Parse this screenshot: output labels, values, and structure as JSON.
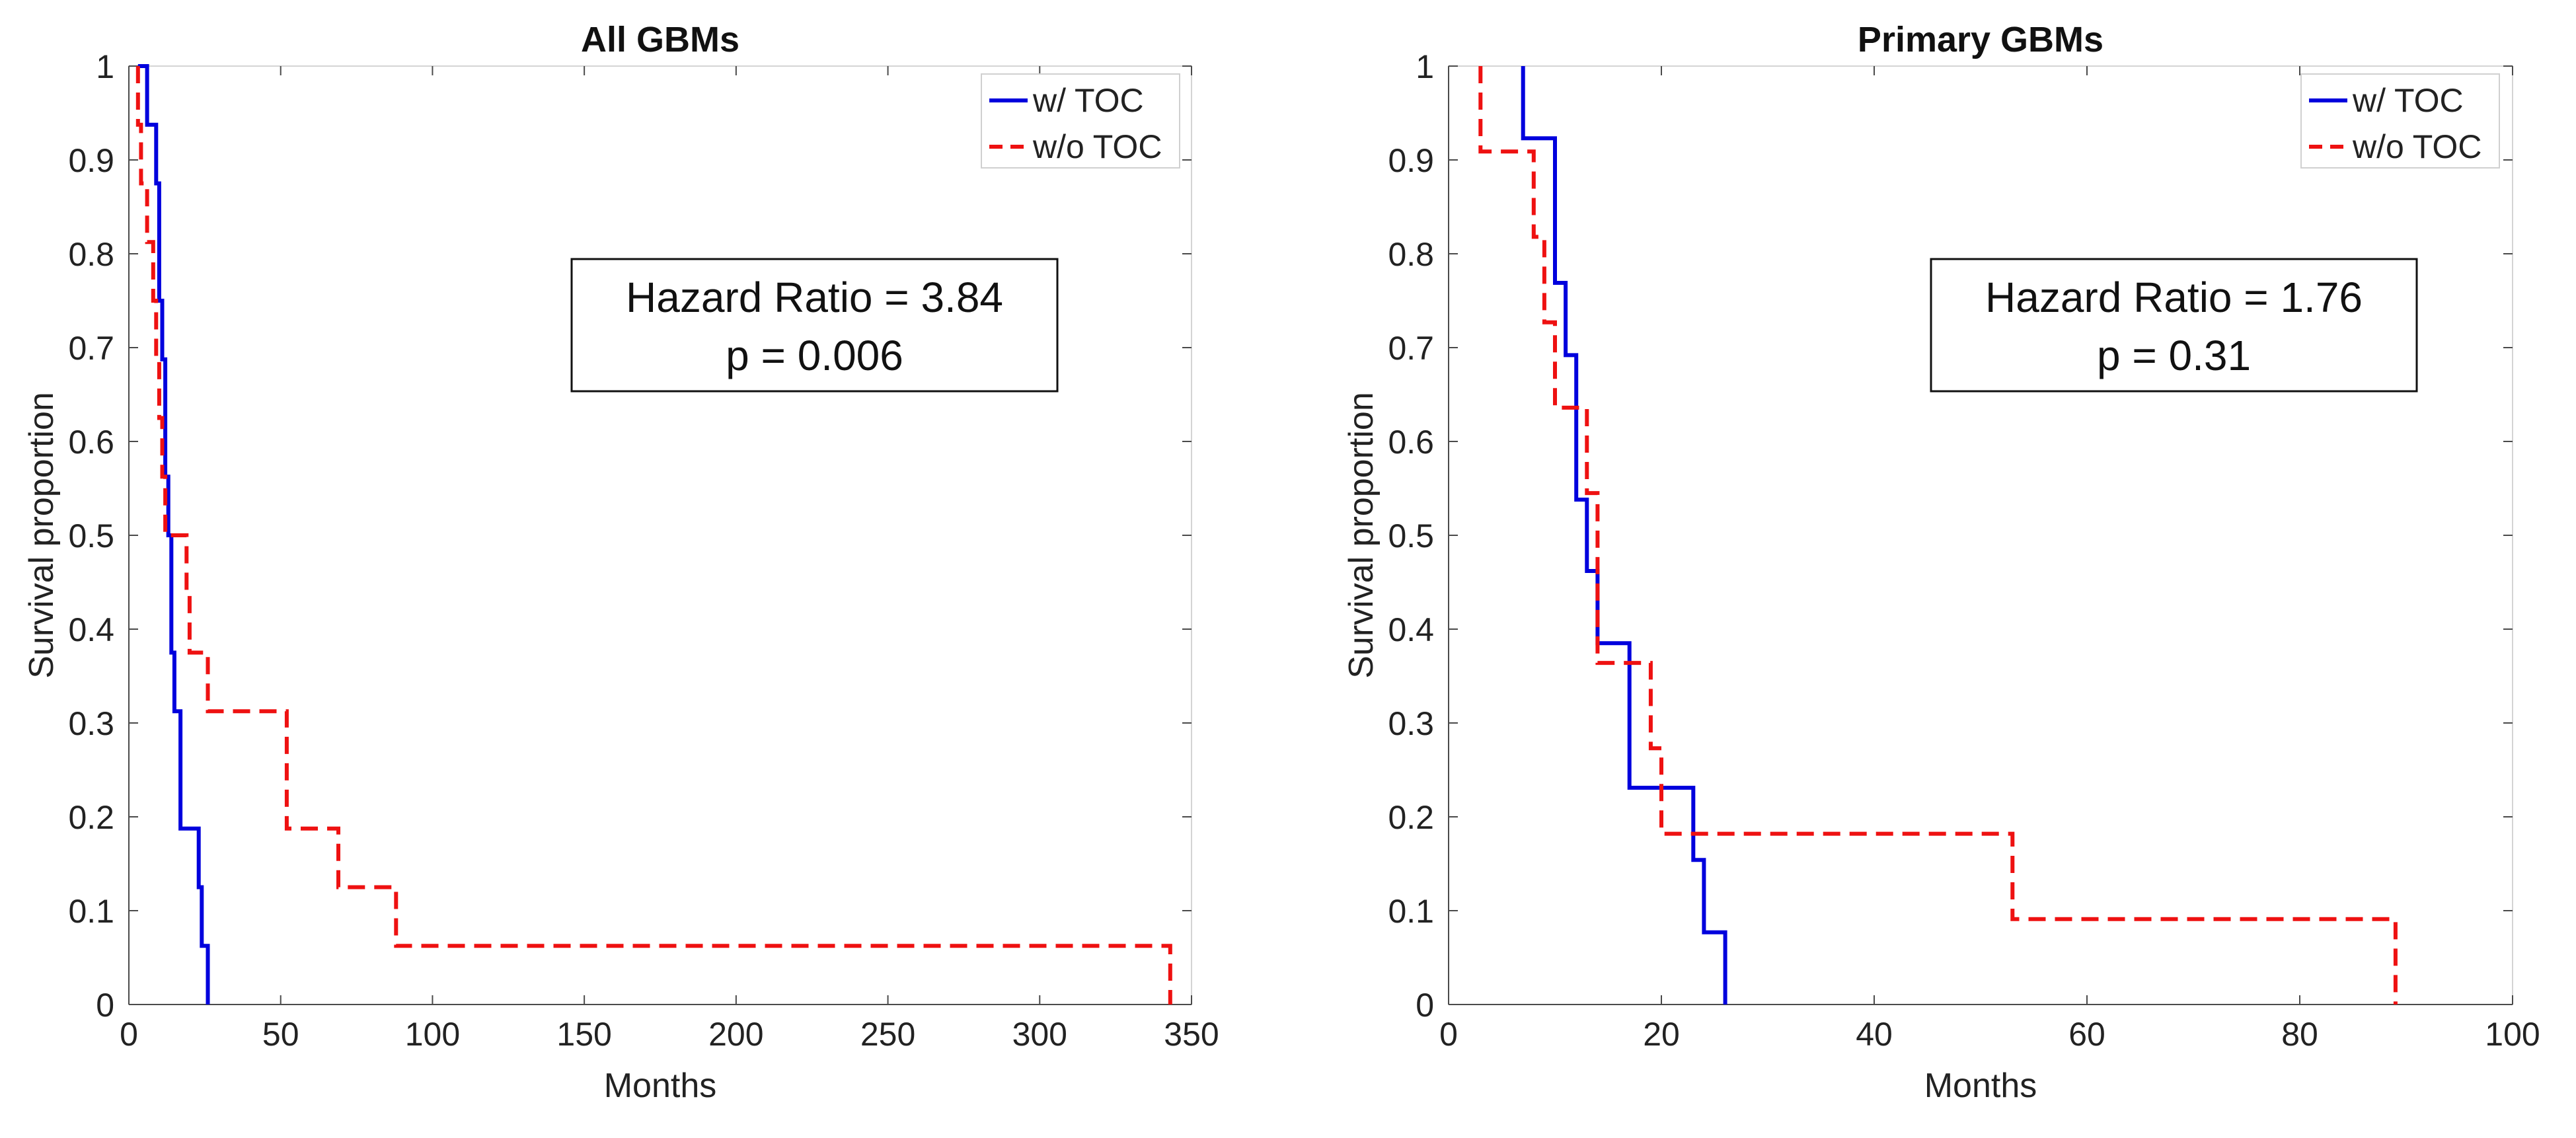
{
  "chart_data": [
    {
      "type": "line",
      "title": "All GBMs",
      "xlabel": "Months",
      "ylabel": "Survival proportion",
      "xlim": [
        0,
        350
      ],
      "ylim": [
        0,
        1
      ],
      "xticks": [
        0,
        50,
        100,
        150,
        200,
        250,
        300,
        350
      ],
      "yticks": [
        0,
        0.1,
        0.2,
        0.3,
        0.4,
        0.5,
        0.6,
        0.7,
        0.8,
        0.9,
        1
      ],
      "ytick_labels": [
        "0",
        "0.1",
        "0.2",
        "0.3",
        "0.4",
        "0.5",
        "0.6",
        "0.7",
        "0.8",
        "0.9",
        "1"
      ],
      "grid": false,
      "legend_position": "top-right",
      "annotation": {
        "lines": [
          "Hazard Ratio = 3.84",
          "p = 0.006"
        ]
      },
      "series": [
        {
          "name": "w/ TOC",
          "color": "#0000dd",
          "style": "solid",
          "x": [
            3,
            6,
            6,
            9,
            9,
            10,
            10,
            11,
            11,
            12,
            12,
            13,
            13,
            14,
            14,
            15,
            15,
            17,
            17,
            23,
            23,
            24,
            24,
            26,
            26
          ],
          "y": [
            1,
            1,
            0.9375,
            0.9375,
            0.875,
            0.875,
            0.75,
            0.75,
            0.6875,
            0.6875,
            0.5625,
            0.5625,
            0.5,
            0.5,
            0.375,
            0.375,
            0.3125,
            0.3125,
            0.1875,
            0.1875,
            0.125,
            0.125,
            0.0625,
            0.0625,
            0
          ]
        },
        {
          "name": "w/o TOC",
          "color": "#ee1111",
          "style": "dashed",
          "x": [
            3,
            3,
            4,
            4,
            6,
            6,
            8,
            8,
            9,
            9,
            10,
            10,
            11,
            11,
            12,
            12,
            13,
            13,
            14,
            14,
            15,
            15,
            19,
            19,
            20,
            20,
            26,
            26,
            52,
            52,
            69,
            69,
            88,
            88,
            343,
            343
          ],
          "y": [
            1,
            0.9375,
            0.9375,
            0.875,
            0.875,
            0.8125,
            0.8125,
            0.75,
            0.75,
            0.6875,
            0.6875,
            0.625,
            0.625,
            0.5625,
            0.5625,
            0.5,
            0.5,
            0.5,
            0.5,
            0.5,
            0.5,
            0.5,
            0.5,
            0.4375,
            0.4375,
            0.375,
            0.375,
            0.3125,
            0.3125,
            0.1875,
            0.1875,
            0.125,
            0.125,
            0.0625,
            0.0625,
            0
          ]
        }
      ]
    },
    {
      "type": "line",
      "title": "Primary GBMs",
      "xlabel": "Months",
      "ylabel": "Survival proportion",
      "xlim": [
        0,
        100
      ],
      "ylim": [
        0,
        1
      ],
      "xticks": [
        0,
        20,
        40,
        60,
        80,
        100
      ],
      "yticks": [
        0,
        0.1,
        0.2,
        0.3,
        0.4,
        0.5,
        0.6,
        0.7,
        0.8,
        0.9,
        1
      ],
      "ytick_labels": [
        "0",
        "0.1",
        "0.2",
        "0.3",
        "0.4",
        "0.5",
        "0.6",
        "0.7",
        "0.8",
        "0.9",
        "1"
      ],
      "grid": false,
      "legend_position": "top-right",
      "annotation": {
        "lines": [
          "Hazard Ratio = 1.76",
          "p = 0.31"
        ]
      },
      "series": [
        {
          "name": "w/ TOC",
          "color": "#0000dd",
          "style": "solid",
          "x": [
            7,
            7,
            10,
            10,
            11,
            11,
            12,
            12,
            13,
            13,
            14,
            14,
            17,
            17,
            23,
            23,
            24,
            24,
            26,
            26
          ],
          "y": [
            1,
            0.923,
            0.923,
            0.769,
            0.769,
            0.692,
            0.692,
            0.538,
            0.538,
            0.462,
            0.462,
            0.385,
            0.385,
            0.231,
            0.231,
            0.154,
            0.154,
            0.077,
            0.077,
            0
          ]
        },
        {
          "name": "w/o TOC",
          "color": "#ee1111",
          "style": "dashed",
          "x": [
            3,
            3,
            8,
            8,
            9,
            9,
            10,
            10,
            13,
            13,
            14,
            14,
            19,
            19,
            20,
            20,
            53,
            53,
            89,
            89
          ],
          "y": [
            1,
            0.909,
            0.909,
            0.818,
            0.818,
            0.727,
            0.727,
            0.636,
            0.636,
            0.545,
            0.545,
            0.364,
            0.364,
            0.273,
            0.273,
            0.182,
            0.182,
            0.091,
            0.091,
            0
          ]
        }
      ]
    }
  ]
}
